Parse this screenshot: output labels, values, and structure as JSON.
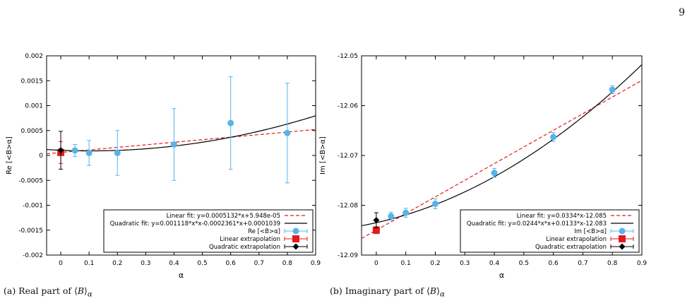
{
  "page": {
    "number": "9"
  },
  "captions": [
    {
      "prefix": "(a) Real part of ⟨",
      "symbol": "B",
      "suffix": "⟩",
      "sub": "α"
    },
    {
      "prefix": "(b) Imaginary part of ⟨",
      "symbol": "B",
      "suffix": "⟩",
      "sub": "α"
    }
  ],
  "colors": {
    "data": "#56b4e9",
    "linear": "#e41a1c",
    "quadratic": "#000000",
    "linear_extrap": "#e41a1c",
    "quadratic_extrap": "#000000"
  },
  "chart_data": [
    {
      "type": "scatter",
      "xlabel": "α",
      "ylabel": "Re [<B>α]",
      "xlim": [
        -0.05,
        0.9
      ],
      "ylim": [
        -0.002,
        0.002
      ],
      "xticks": [
        "0",
        "0.1",
        "0.2",
        "0.3",
        "0.4",
        "0.5",
        "0.6",
        "0.7",
        "0.8",
        "0.9"
      ],
      "yticks": [
        "-0.002",
        "-0.0015",
        "-0.001",
        "-0.0005",
        "0",
        "0.0005",
        "0.001",
        "0.0015",
        "0.002"
      ],
      "grid": false,
      "legend_position": "bottom-right",
      "series": [
        {
          "name": "Re [<B>α]",
          "kind": "points",
          "x": [
            0.05,
            0.1,
            0.2,
            0.4,
            0.6,
            0.8
          ],
          "y": [
            0.0001,
            5e-05,
            5e-05,
            0.00022,
            0.00065,
            0.00045
          ],
          "err": [
            0.00012,
            0.00025,
            0.00045,
            0.00072,
            0.00093,
            0.001
          ]
        },
        {
          "name": "Linear extrapolation",
          "kind": "extrap",
          "x": [
            0
          ],
          "y": [
            5.95e-05
          ],
          "err": [
            0.00022
          ]
        },
        {
          "name": "Quadratic extrapolation",
          "kind": "extrap",
          "x": [
            0
          ],
          "y": [
            0.000104
          ],
          "err": [
            0.00038
          ]
        }
      ],
      "fits": [
        {
          "name": "Linear fit: y=0.0005132*x+5.948e-05",
          "kind": "linear",
          "coef": [
            0,
            0.0005132,
            5.948e-05
          ]
        },
        {
          "name": "Quadratic fit: y=0.001118*x*x-0.0002361*x+0.0001039",
          "kind": "quadratic",
          "coef": [
            0.001118,
            -0.0002361,
            0.0001039
          ]
        }
      ]
    },
    {
      "type": "scatter",
      "xlabel": "α",
      "ylabel": "Im [<B>α]",
      "xlim": [
        -0.05,
        0.9
      ],
      "ylim": [
        -12.09,
        -12.05
      ],
      "xticks": [
        "0",
        "0.1",
        "0.2",
        "0.3",
        "0.4",
        "0.5",
        "0.6",
        "0.7",
        "0.8",
        "0.9"
      ],
      "yticks": [
        "-12.09",
        "-12.08",
        "-12.07",
        "-12.06",
        "-12.05"
      ],
      "grid": false,
      "legend_position": "bottom-right",
      "series": [
        {
          "name": "Im [<B>α]",
          "kind": "points",
          "x": [
            0.05,
            0.1,
            0.2,
            0.4,
            0.6,
            0.8
          ],
          "y": [
            -12.0822,
            -12.0815,
            -12.0797,
            -12.0735,
            -12.0663,
            -12.0568
          ],
          "err": [
            0.0008,
            0.0009,
            0.001,
            0.0009,
            0.0009,
            0.0008
          ]
        },
        {
          "name": "Linear extrapolation",
          "kind": "extrap",
          "x": [
            0
          ],
          "y": [
            -12.085
          ],
          "err": [
            0.0007
          ]
        },
        {
          "name": "Quadratic extrapolation",
          "kind": "extrap",
          "x": [
            0
          ],
          "y": [
            -12.083
          ],
          "err": [
            0.0015
          ]
        }
      ],
      "fits": [
        {
          "name": "Linear fit: y=0.0334*x-12.085",
          "kind": "linear",
          "coef": [
            0,
            0.0334,
            -12.085
          ]
        },
        {
          "name": "Quadratic fit: y=0.0244*x*x+0.0133*x-12.083",
          "kind": "quadratic",
          "coef": [
            0.0244,
            0.0133,
            -12.0835
          ]
        }
      ]
    }
  ]
}
